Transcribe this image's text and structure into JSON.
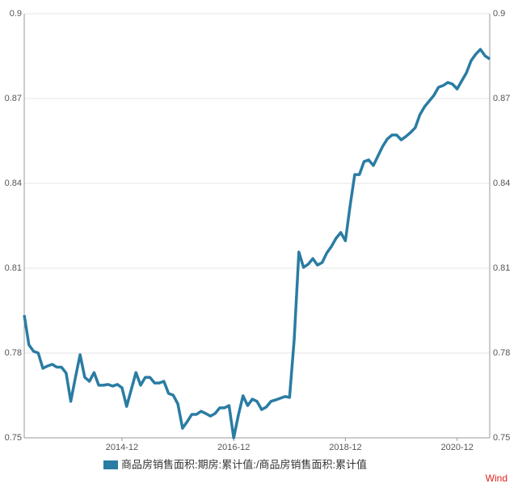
{
  "chart_data": {
    "type": "line",
    "x": [
      "2013-03",
      "2013-04",
      "2013-05",
      "2013-06",
      "2013-07",
      "2013-08",
      "2013-09",
      "2013-10",
      "2013-11",
      "2013-12",
      "2014-01",
      "2014-02",
      "2014-03",
      "2014-04",
      "2014-05",
      "2014-06",
      "2014-07",
      "2014-08",
      "2014-09",
      "2014-10",
      "2014-11",
      "2014-12",
      "2015-01",
      "2015-02",
      "2015-03",
      "2015-04",
      "2015-05",
      "2015-06",
      "2015-07",
      "2015-08",
      "2015-09",
      "2015-10",
      "2015-11",
      "2015-12",
      "2016-01",
      "2016-02",
      "2016-03",
      "2016-04",
      "2016-05",
      "2016-06",
      "2016-07",
      "2016-08",
      "2016-09",
      "2016-10",
      "2016-11",
      "2016-12",
      "2017-01",
      "2017-02",
      "2017-03",
      "2017-04",
      "2017-05",
      "2017-06",
      "2017-07",
      "2017-08",
      "2017-09",
      "2017-10",
      "2017-11",
      "2017-12",
      "2018-01",
      "2018-02",
      "2018-03",
      "2018-04",
      "2018-05",
      "2018-06",
      "2018-07",
      "2018-08",
      "2018-09",
      "2018-10",
      "2018-11",
      "2018-12",
      "2019-01",
      "2019-02",
      "2019-03",
      "2019-04",
      "2019-05",
      "2019-06",
      "2019-07",
      "2019-08",
      "2019-09",
      "2019-10",
      "2019-11",
      "2019-12",
      "2020-01",
      "2020-02",
      "2020-03",
      "2020-04",
      "2020-05",
      "2020-06",
      "2020-07",
      "2020-08",
      "2020-09",
      "2020-10",
      "2020-11",
      "2020-12",
      "2021-01",
      "2021-02",
      "2021-03",
      "2021-04",
      "2021-05",
      "2021-06",
      "2021-07"
    ],
    "series": [
      {
        "name": "商品房销售面积:期房:累计值:/商品房销售面积:累计值",
        "color": "#2a7ca3",
        "values": [
          0.7934,
          0.7829,
          0.7806,
          0.78,
          0.7746,
          0.7754,
          0.776,
          0.775,
          0.775,
          0.7729,
          0.7629,
          0.7714,
          0.7794,
          0.7714,
          0.77,
          0.7731,
          0.7686,
          0.7686,
          0.7689,
          0.7683,
          0.7689,
          0.7677,
          0.7611,
          0.7671,
          0.7731,
          0.7686,
          0.7714,
          0.7714,
          0.7694,
          0.7694,
          0.77,
          0.7657,
          0.7651,
          0.762,
          0.7534,
          0.7557,
          0.7583,
          0.7583,
          0.7594,
          0.7586,
          0.7577,
          0.7586,
          0.7606,
          0.7606,
          0.7614,
          0.75,
          0.758,
          0.7649,
          0.7614,
          0.7637,
          0.7629,
          0.76,
          0.7609,
          0.7629,
          0.7634,
          0.764,
          0.7646,
          0.7643,
          0.7849,
          0.8157,
          0.8103,
          0.8114,
          0.8134,
          0.8111,
          0.812,
          0.8154,
          0.8177,
          0.8206,
          0.8226,
          0.8197,
          0.832,
          0.8431,
          0.8431,
          0.8477,
          0.8483,
          0.8463,
          0.8497,
          0.8531,
          0.8557,
          0.8571,
          0.8571,
          0.8554,
          0.8566,
          0.858,
          0.8597,
          0.8643,
          0.8671,
          0.8691,
          0.8711,
          0.874,
          0.8746,
          0.8757,
          0.8751,
          0.8734,
          0.8763,
          0.8791,
          0.8834,
          0.8857,
          0.8874,
          0.8851,
          0.884
        ]
      }
    ],
    "xlim": [
      "2013-03",
      "2021-07"
    ],
    "xticks": [
      "2014-12",
      "2016-12",
      "2018-12",
      "2020-12"
    ],
    "ylim": [
      0.75,
      0.9
    ],
    "yticks": [
      0.75,
      0.78,
      0.81,
      0.84,
      0.87,
      0.9
    ],
    "y2lim": [
      0.75,
      0.9
    ],
    "y2ticks": [
      0.75,
      0.78,
      0.81,
      0.84,
      0.87,
      0.9
    ],
    "grid": true,
    "source": "Wind"
  }
}
